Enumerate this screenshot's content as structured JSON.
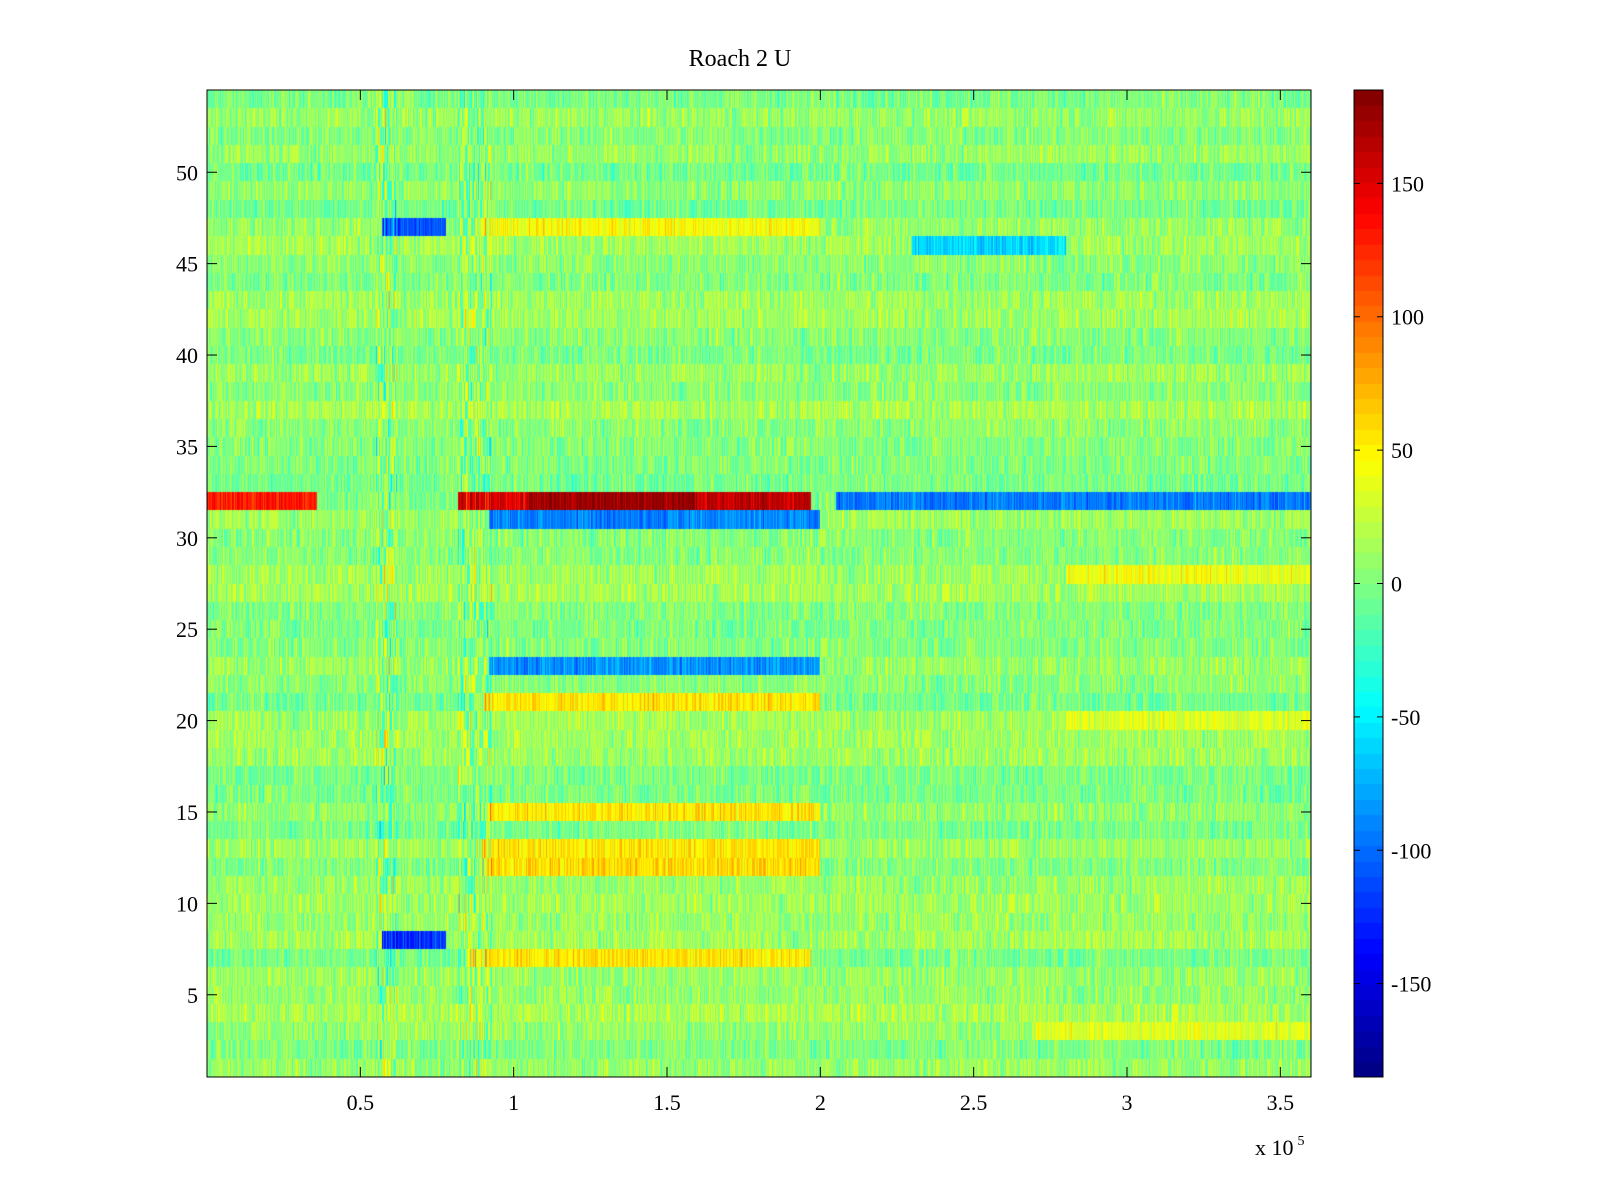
{
  "chart_data": {
    "type": "heatmap",
    "title": "Roach 2 U",
    "xlabel": "",
    "ylabel": "",
    "x_range": [
      0,
      360000
    ],
    "y_range": [
      0.5,
      54.5
    ],
    "x_ticks": [
      50000,
      100000,
      150000,
      200000,
      250000,
      300000,
      350000
    ],
    "x_tick_labels": [
      "0.5",
      "1",
      "1.5",
      "2",
      "2.5",
      "3",
      "3.5"
    ],
    "x_exponent": {
      "base": "x 10",
      "power": "5"
    },
    "y_ticks": [
      5,
      10,
      15,
      20,
      25,
      30,
      35,
      40,
      45,
      50
    ],
    "y_tick_labels": [
      "5",
      "10",
      "15",
      "20",
      "25",
      "30",
      "35",
      "40",
      "45",
      "50"
    ],
    "rows": 54,
    "colormap": "jet",
    "colorbar": {
      "range": [
        -185,
        185
      ],
      "ticks": [
        -150,
        -100,
        -50,
        0,
        50,
        100,
        150
      ],
      "tick_labels": [
        "-150",
        "-100",
        "-50",
        "0",
        "50",
        "100",
        "150"
      ],
      "placement": "right"
    },
    "features": [
      {
        "row": 32,
        "x_start": 0,
        "x_end": 36000,
        "value": 130
      },
      {
        "row": 32,
        "x_start": 36000,
        "x_end": 78000,
        "value": 0
      },
      {
        "row": 32,
        "x_start": 82000,
        "x_end": 105000,
        "value": 150
      },
      {
        "row": 32,
        "x_start": 105000,
        "x_end": 160000,
        "value": 175
      },
      {
        "row": 32,
        "x_start": 160000,
        "x_end": 197000,
        "value": 160
      },
      {
        "row": 32,
        "x_start": 205000,
        "x_end": 360000,
        "value": -95
      },
      {
        "row": 31,
        "x_start": 92000,
        "x_end": 200000,
        "value": -90
      },
      {
        "row": 23,
        "x_start": 92000,
        "x_end": 200000,
        "value": -85
      },
      {
        "row": 21,
        "x_start": 90000,
        "x_end": 200000,
        "value": 55
      },
      {
        "row": 15,
        "x_start": 92000,
        "x_end": 200000,
        "value": 55
      },
      {
        "row": 12,
        "x_start": 90000,
        "x_end": 200000,
        "value": 60
      },
      {
        "row": 13,
        "x_start": 90000,
        "x_end": 200000,
        "value": 55
      },
      {
        "row": 7,
        "x_start": 85000,
        "x_end": 197000,
        "value": 55
      },
      {
        "row": 47,
        "x_start": 90000,
        "x_end": 200000,
        "value": 45
      },
      {
        "row": 8,
        "x_start": 57000,
        "x_end": 78000,
        "value": -120
      },
      {
        "row": 47,
        "x_start": 57000,
        "x_end": 78000,
        "value": -110
      },
      {
        "row": 28,
        "x_start": 280000,
        "x_end": 360000,
        "value": 40
      },
      {
        "row": 20,
        "x_start": 280000,
        "x_end": 360000,
        "value": 35
      },
      {
        "row": 3,
        "x_start": 270000,
        "x_end": 360000,
        "value": 35
      },
      {
        "row": 46,
        "x_start": 230000,
        "x_end": 280000,
        "value": -60
      }
    ]
  }
}
